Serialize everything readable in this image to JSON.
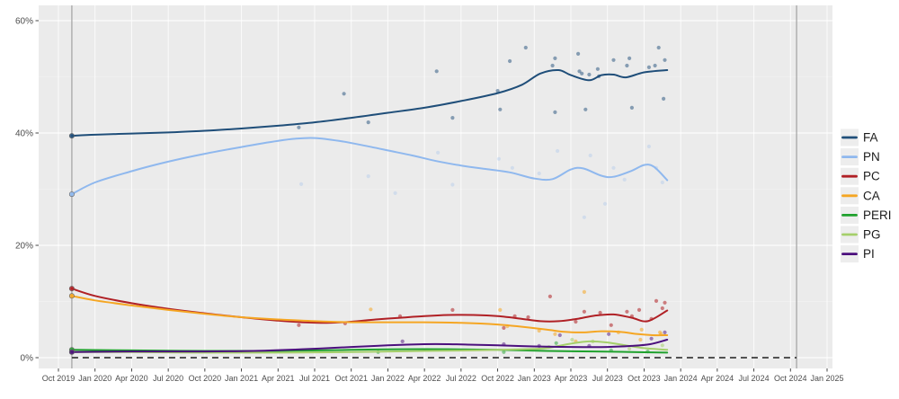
{
  "chart_data": {
    "type": "scatter",
    "subtype": "polls-with-loess-trend-lines",
    "title": "",
    "xlabel": "",
    "ylabel": "",
    "grid": true,
    "legend_position": "right",
    "x_axis": {
      "unit": "date",
      "tick_interval_months": 3,
      "tick_labels": [
        "Oct 2019",
        "Jan 2020",
        "Apr 2020",
        "Jul 2020",
        "Oct 2020",
        "Jan 2021",
        "Apr 2021",
        "Jul 2021",
        "Oct 2021",
        "Jan 2022",
        "Apr 2022",
        "Jul 2022",
        "Oct 2022",
        "Jan 2023",
        "Apr 2023",
        "Jul 2023",
        "Oct 2023",
        "Jan 2024",
        "Apr 2024",
        "Jul 2024",
        "Oct 2024",
        "Jan 2025"
      ]
    },
    "y_axis": {
      "tick_labels": [
        "0%",
        "20%",
        "40%",
        "60%"
      ],
      "tick_values": [
        0,
        20,
        40,
        60
      ],
      "minor_tick_values": [
        10,
        30,
        50
      ],
      "range": [
        -2,
        62.7
      ]
    },
    "reference_lines": {
      "vertical_event_months": [
        1.1,
        60.5
      ],
      "zero_line_dashed": true,
      "zero_line_span_months": [
        1.1,
        60.5
      ]
    },
    "series": [
      {
        "name": "FA",
        "color": "#1f4e79",
        "point_opacity": 0.5,
        "smooth": [
          [
            1.1,
            39.5
          ],
          [
            3,
            39.7
          ],
          [
            6,
            39.9
          ],
          [
            9,
            40.1
          ],
          [
            12,
            40.4
          ],
          [
            15,
            40.8
          ],
          [
            18,
            41.3
          ],
          [
            21,
            41.9
          ],
          [
            24,
            42.7
          ],
          [
            27,
            43.6
          ],
          [
            30,
            44.5
          ],
          [
            33,
            45.7
          ],
          [
            36,
            47.1
          ],
          [
            38,
            48.6
          ],
          [
            39.5,
            50.6
          ],
          [
            41,
            51.2
          ],
          [
            42,
            50.3
          ],
          [
            43.5,
            49.4
          ],
          [
            44.5,
            50.3
          ],
          [
            45.5,
            50.4
          ],
          [
            46.5,
            49.9
          ],
          [
            48,
            50.8
          ],
          [
            49.9,
            51.2
          ]
        ],
        "points": [
          [
            19.7,
            41.0
          ],
          [
            23.4,
            47.0
          ],
          [
            25.4,
            41.9
          ],
          [
            31.0,
            51.0
          ],
          [
            32.3,
            42.7
          ],
          [
            36.0,
            47.5
          ],
          [
            36.2,
            44.2
          ],
          [
            37.0,
            52.8
          ],
          [
            38.3,
            55.2
          ],
          [
            40.5,
            52.0
          ],
          [
            40.7,
            53.3
          ],
          [
            40.7,
            43.7
          ],
          [
            42.6,
            54.1
          ],
          [
            42.7,
            51.0
          ],
          [
            42.9,
            50.6
          ],
          [
            43.2,
            44.2
          ],
          [
            43.5,
            50.4
          ],
          [
            44.2,
            51.4
          ],
          [
            44.3,
            50.1
          ],
          [
            45.5,
            53.0
          ],
          [
            46.6,
            52.0
          ],
          [
            46.8,
            53.3
          ],
          [
            47.0,
            44.5
          ],
          [
            48.4,
            51.7
          ],
          [
            48.9,
            52.0
          ],
          [
            49.2,
            55.2
          ],
          [
            49.6,
            46.1
          ],
          [
            49.7,
            53.0
          ]
        ]
      },
      {
        "name": "PN",
        "color": "#8fb8ee",
        "point_opacity": 0.28,
        "smooth": [
          [
            1.1,
            29.1
          ],
          [
            3,
            31.2
          ],
          [
            6,
            33.2
          ],
          [
            9,
            34.9
          ],
          [
            12,
            36.3
          ],
          [
            15,
            37.5
          ],
          [
            18,
            38.6
          ],
          [
            19.5,
            39.0
          ],
          [
            21,
            39.1
          ],
          [
            23,
            38.6
          ],
          [
            25,
            37.8
          ],
          [
            27,
            36.9
          ],
          [
            29,
            36.0
          ],
          [
            31,
            35.0
          ],
          [
            33,
            34.2
          ],
          [
            35,
            33.6
          ],
          [
            37,
            33.0
          ],
          [
            39,
            31.9
          ],
          [
            40.5,
            31.8
          ],
          [
            42,
            33.5
          ],
          [
            43,
            33.7
          ],
          [
            44.5,
            32.4
          ],
          [
            45.5,
            32.2
          ],
          [
            47,
            33.3
          ],
          [
            48,
            34.3
          ],
          [
            48.8,
            34.0
          ],
          [
            49.9,
            31.6
          ]
        ],
        "points": [
          [
            19.9,
            30.9
          ],
          [
            25.4,
            32.3
          ],
          [
            27.6,
            29.3
          ],
          [
            31.1,
            36.5
          ],
          [
            32.3,
            30.8
          ],
          [
            36.1,
            35.4
          ],
          [
            37.2,
            33.8
          ],
          [
            39.4,
            32.8
          ],
          [
            40.9,
            36.8
          ],
          [
            43.1,
            25.0
          ],
          [
            43.6,
            36.0
          ],
          [
            44.8,
            27.4
          ],
          [
            45.5,
            33.8
          ],
          [
            46.4,
            31.7
          ],
          [
            48.4,
            37.6
          ],
          [
            49.0,
            33.8
          ],
          [
            49.5,
            31.2
          ]
        ]
      },
      {
        "name": "PC",
        "color": "#b02025",
        "point_opacity": 0.55,
        "smooth": [
          [
            1.1,
            12.3
          ],
          [
            3,
            11.0
          ],
          [
            6,
            9.7
          ],
          [
            9,
            8.7
          ],
          [
            12,
            7.9
          ],
          [
            15,
            7.2
          ],
          [
            18,
            6.6
          ],
          [
            20,
            6.3
          ],
          [
            22,
            6.2
          ],
          [
            24,
            6.4
          ],
          [
            26,
            6.8
          ],
          [
            28,
            7.1
          ],
          [
            30,
            7.4
          ],
          [
            32,
            7.6
          ],
          [
            34,
            7.6
          ],
          [
            36,
            7.4
          ],
          [
            38,
            6.9
          ],
          [
            39.5,
            6.5
          ],
          [
            41,
            6.5
          ],
          [
            42.5,
            6.9
          ],
          [
            44,
            7.5
          ],
          [
            45.5,
            7.7
          ],
          [
            47,
            7.1
          ],
          [
            48.3,
            6.5
          ],
          [
            49.9,
            8.4
          ]
        ],
        "points": [
          [
            19.7,
            5.8
          ],
          [
            23.5,
            6.1
          ],
          [
            28.0,
            7.4
          ],
          [
            32.3,
            8.5
          ],
          [
            36.5,
            5.3
          ],
          [
            37.4,
            7.4
          ],
          [
            38.5,
            7.2
          ],
          [
            40.3,
            10.9
          ],
          [
            42.4,
            6.4
          ],
          [
            43.1,
            8.2
          ],
          [
            44.4,
            8.0
          ],
          [
            45.3,
            5.8
          ],
          [
            46.6,
            8.2
          ],
          [
            47.0,
            7.4
          ],
          [
            47.6,
            8.5
          ],
          [
            48.6,
            6.9
          ],
          [
            49.0,
            10.1
          ],
          [
            49.5,
            8.8
          ],
          [
            49.7,
            9.8
          ]
        ]
      },
      {
        "name": "CA",
        "color": "#f5a623",
        "point_opacity": 0.55,
        "smooth": [
          [
            1.1,
            11.0
          ],
          [
            3,
            10.2
          ],
          [
            6,
            9.3
          ],
          [
            9,
            8.5
          ],
          [
            12,
            7.8
          ],
          [
            15,
            7.2
          ],
          [
            18,
            6.8
          ],
          [
            21,
            6.5
          ],
          [
            24,
            6.3
          ],
          [
            27,
            6.3
          ],
          [
            30,
            6.3
          ],
          [
            33,
            6.2
          ],
          [
            36,
            5.9
          ],
          [
            38,
            5.5
          ],
          [
            40,
            5.0
          ],
          [
            41.5,
            4.6
          ],
          [
            43,
            4.5
          ],
          [
            44.5,
            4.7
          ],
          [
            46,
            4.6
          ],
          [
            47.5,
            4.2
          ],
          [
            48.7,
            4.0
          ],
          [
            49.9,
            4.0
          ]
        ],
        "points": [
          [
            25.6,
            8.6
          ],
          [
            36.2,
            8.5
          ],
          [
            36.8,
            5.6
          ],
          [
            39.4,
            4.8
          ],
          [
            40.7,
            4.2
          ],
          [
            42.4,
            2.9
          ],
          [
            43.1,
            11.7
          ],
          [
            45.9,
            4.5
          ],
          [
            47.7,
            3.2
          ],
          [
            47.8,
            5.0
          ],
          [
            49.3,
            4.5
          ],
          [
            49.4,
            4.2
          ]
        ]
      },
      {
        "name": "PERI",
        "color": "#1fa12d",
        "point_opacity": 0.5,
        "smooth": [
          [
            1.1,
            1.4
          ],
          [
            6,
            1.3
          ],
          [
            12,
            1.2
          ],
          [
            18,
            1.2
          ],
          [
            24,
            1.4
          ],
          [
            28,
            1.5
          ],
          [
            32,
            1.5
          ],
          [
            36,
            1.4
          ],
          [
            40,
            1.2
          ],
          [
            44,
            1.1
          ],
          [
            47,
            1.0
          ],
          [
            49.9,
            0.9
          ]
        ],
        "points": [
          [
            26.2,
            1.0
          ],
          [
            36.5,
            1.0
          ],
          [
            40.8,
            2.6
          ],
          [
            45.3,
            1.3
          ],
          [
            48.3,
            1.1
          ]
        ]
      },
      {
        "name": "PG",
        "color": "#a5cf6b",
        "point_opacity": 0.55,
        "smooth": [
          [
            1.1,
            1.0
          ],
          [
            6,
            1.0
          ],
          [
            12,
            0.9
          ],
          [
            18,
            0.9
          ],
          [
            24,
            1.0
          ],
          [
            30,
            1.2
          ],
          [
            34,
            1.3
          ],
          [
            38,
            1.5
          ],
          [
            40,
            1.7
          ],
          [
            42,
            2.5
          ],
          [
            43.5,
            2.9
          ],
          [
            45,
            2.7
          ],
          [
            46.5,
            2.2
          ],
          [
            48,
            1.7
          ],
          [
            49.9,
            1.4
          ]
        ],
        "points": [
          [
            40.2,
            1.9
          ],
          [
            42.1,
            3.2
          ],
          [
            43.8,
            2.9
          ],
          [
            46.8,
            1.6
          ],
          [
            49.5,
            2.2
          ]
        ]
      },
      {
        "name": "PI",
        "color": "#4b0f7d",
        "point_opacity": 0.5,
        "smooth": [
          [
            1.1,
            1.0
          ],
          [
            6,
            1.1
          ],
          [
            12,
            1.1
          ],
          [
            16,
            1.2
          ],
          [
            20,
            1.5
          ],
          [
            24,
            1.9
          ],
          [
            27,
            2.2
          ],
          [
            30,
            2.4
          ],
          [
            32,
            2.4
          ],
          [
            34,
            2.3
          ],
          [
            36,
            2.2
          ],
          [
            39,
            2.0
          ],
          [
            42,
            1.9
          ],
          [
            45,
            1.9
          ],
          [
            47,
            2.1
          ],
          [
            48.5,
            2.4
          ],
          [
            49.9,
            3.2
          ]
        ],
        "points": [
          [
            28.2,
            2.9
          ],
          [
            36.5,
            2.4
          ],
          [
            39.4,
            2.1
          ],
          [
            41.1,
            4.0
          ],
          [
            43.5,
            2.1
          ],
          [
            45.1,
            4.2
          ],
          [
            48.6,
            3.4
          ],
          [
            49.7,
            4.5
          ]
        ]
      }
    ],
    "legend_entries": [
      "FA",
      "PN",
      "PC",
      "CA",
      "PERI",
      "PG",
      "PI"
    ],
    "colors": {
      "panel_background": "#ebebeb",
      "grid_major": "#ffffff",
      "event_line": "#a0a0a0",
      "zero_dashed_line": "#3c3c3c",
      "axis_text": "#4d4d4d",
      "legend_text": "#1a1a1a",
      "legend_key_background": "#ededed"
    }
  }
}
